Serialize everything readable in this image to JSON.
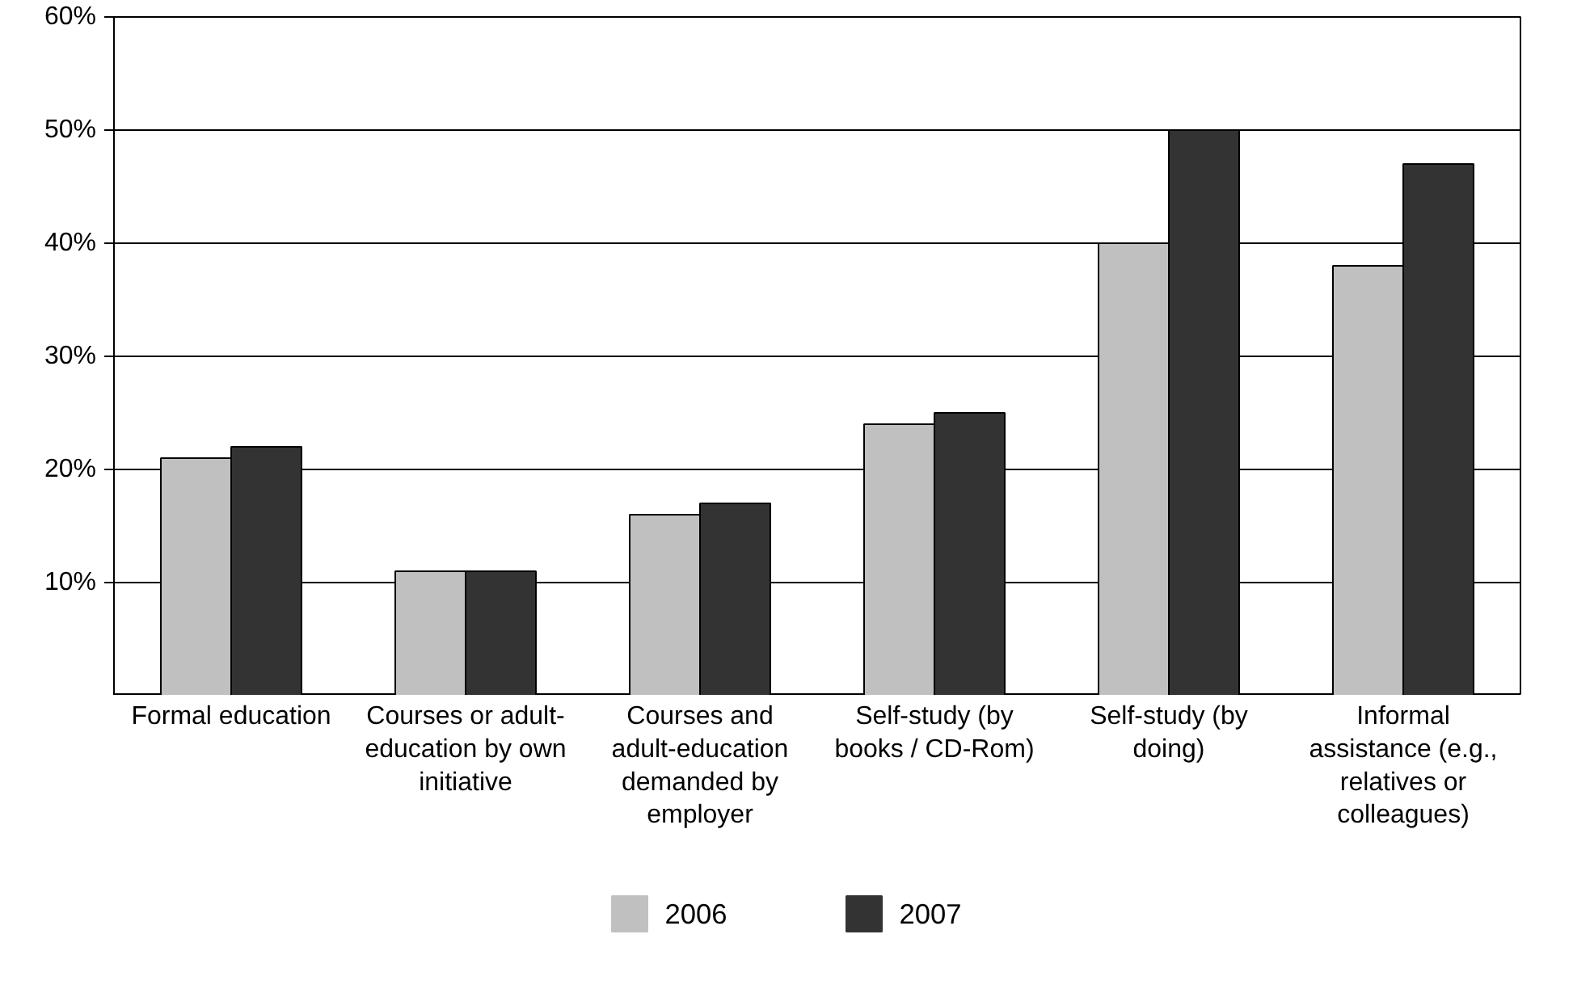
{
  "chart_data": {
    "type": "bar",
    "categories": [
      "Formal education",
      "Courses or adult-education by own initiative",
      "Courses and adult-education demanded by employer",
      "Self-study (by books / CD-Rom)",
      "Self-study (by doing)",
      "Informal assistance (e.g., relatives or colleagues)"
    ],
    "series": [
      {
        "name": "2006",
        "color": "#c0c0c0",
        "values": [
          21,
          11,
          16,
          24,
          40,
          38
        ]
      },
      {
        "name": "2007",
        "color": "#333333",
        "values": [
          22,
          11,
          17,
          25,
          50,
          47
        ]
      }
    ],
    "ylim": [
      0,
      60
    ],
    "yticks": [
      {
        "value": 0,
        "label": null
      },
      {
        "value": 10,
        "label": "10%"
      },
      {
        "value": 20,
        "label": "20%"
      },
      {
        "value": 30,
        "label": "30%"
      },
      {
        "value": 40,
        "label": "40%"
      },
      {
        "value": 50,
        "label": "50%"
      },
      {
        "value": 60,
        "label": "60%"
      }
    ],
    "grid": "y",
    "legend": "bottom"
  }
}
